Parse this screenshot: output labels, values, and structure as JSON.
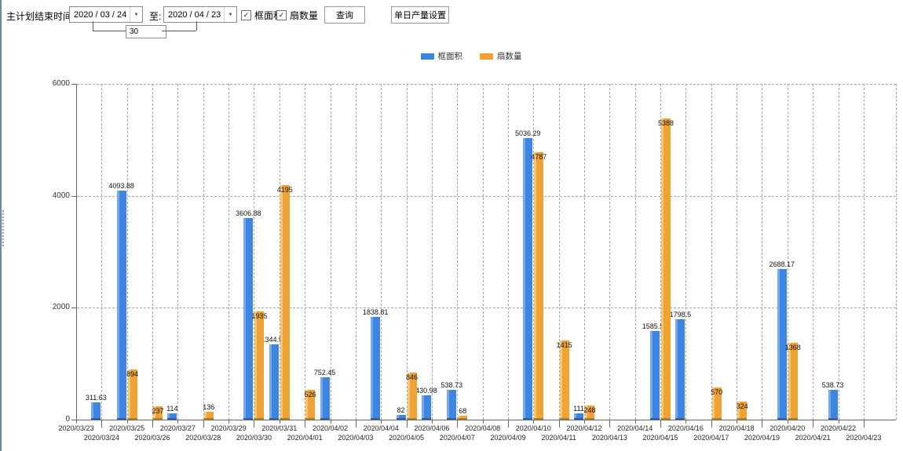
{
  "toolbar": {
    "label": "主计划结束时间:",
    "start_date": "2020 / 03 / 24",
    "to_label": "至:",
    "end_date": "2020 / 04 / 23",
    "interval_days": "30",
    "checkboxes": [
      {
        "label": "框面积",
        "checked": true
      },
      {
        "label": "扇数量",
        "checked": true
      }
    ],
    "query_button": "查询",
    "daily_output_button": "单日产量设置"
  },
  "icons": {
    "dropdown_arrow": "▼",
    "checkbox_check": "✓"
  },
  "chart_data": {
    "type": "bar",
    "title": "",
    "legend_position": "top-center",
    "grid": true,
    "axis_color": "#666666",
    "grid_color": "#a8a8a8",
    "ylim": [
      0,
      6000
    ],
    "yticks": [
      "0",
      "2000",
      "4000",
      "6000"
    ],
    "categories": [
      "2020/03/23",
      "2020/03/24",
      "2020/03/25",
      "2020/03/26",
      "2020/03/27",
      "2020/03/28",
      "2020/03/29",
      "2020/03/30",
      "2020/03/31",
      "2020/04/01",
      "2020/04/02",
      "2020/04/03",
      "2020/04/04",
      "2020/04/05",
      "2020/04/06",
      "2020/04/07",
      "2020/04/08",
      "2020/04/09",
      "2020/04/10",
      "2020/04/11",
      "2020/04/12",
      "2020/04/13",
      "2020/04/14",
      "2020/04/15",
      "2020/04/16",
      "2020/04/17",
      "2020/04/18",
      "2020/04/19",
      "2020/04/20",
      "2020/04/21",
      "2020/04/22",
      "2020/04/23"
    ],
    "series": [
      {
        "name": "框面积",
        "color": "#3d85e0",
        "color_light": "#74a9ef",
        "color_dark": "#2b62b0",
        "values": [
          null,
          311.63,
          4093.88,
          null,
          114,
          null,
          null,
          3606.88,
          1344.95,
          null,
          752.45,
          null,
          1838.81,
          82,
          430.98,
          538.73,
          null,
          null,
          5036.29,
          null,
          111,
          null,
          null,
          1585.96,
          1798.5,
          null,
          null,
          null,
          2688.17,
          null,
          538.73,
          null
        ]
      },
      {
        "name": "扇数量",
        "color": "#f0a335",
        "color_light": "#f7c671",
        "color_dark": "#bb7f1d",
        "values": [
          null,
          null,
          894,
          237,
          null,
          136,
          null,
          1935,
          4195,
          526,
          null,
          null,
          null,
          846,
          null,
          68,
          null,
          null,
          4787,
          1415,
          248,
          null,
          null,
          5388,
          null,
          570,
          324,
          null,
          1368,
          null,
          null,
          null
        ]
      }
    ]
  }
}
